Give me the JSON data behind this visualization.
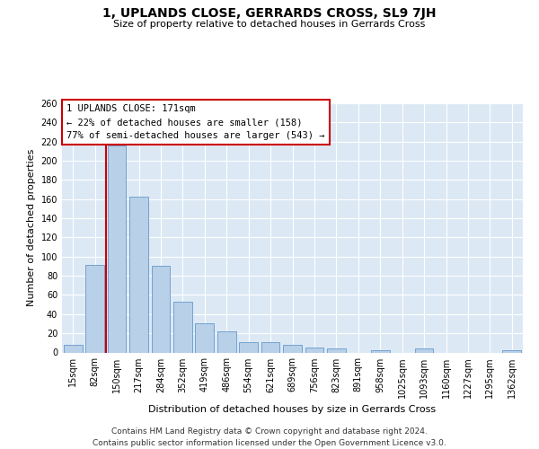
{
  "title": "1, UPLANDS CLOSE, GERRARDS CROSS, SL9 7JH",
  "subtitle": "Size of property relative to detached houses in Gerrards Cross",
  "xlabel": "Distribution of detached houses by size in Gerrards Cross",
  "ylabel": "Number of detached properties",
  "bar_labels": [
    "15sqm",
    "82sqm",
    "150sqm",
    "217sqm",
    "284sqm",
    "352sqm",
    "419sqm",
    "486sqm",
    "554sqm",
    "621sqm",
    "689sqm",
    "756sqm",
    "823sqm",
    "891sqm",
    "958sqm",
    "1025sqm",
    "1093sqm",
    "1160sqm",
    "1227sqm",
    "1295sqm",
    "1362sqm"
  ],
  "bar_values": [
    8,
    91,
    216,
    163,
    90,
    53,
    30,
    22,
    11,
    11,
    8,
    5,
    4,
    0,
    2,
    0,
    4,
    0,
    0,
    0,
    2
  ],
  "bar_color": "#b8d0e8",
  "bar_edge_color": "#6699cc",
  "background_color": "#dce9f5",
  "grid_color": "#ffffff",
  "vline_color": "#cc0000",
  "annotation_text": "1 UPLANDS CLOSE: 171sqm\n← 22% of detached houses are smaller (158)\n77% of semi-detached houses are larger (543) →",
  "annotation_box_color": "#ffffff",
  "annotation_box_edge_color": "#cc0000",
  "footer_line1": "Contains HM Land Registry data © Crown copyright and database right 2024.",
  "footer_line2": "Contains public sector information licensed under the Open Government Licence v3.0.",
  "ylim": [
    0,
    260
  ],
  "yticks": [
    0,
    20,
    40,
    60,
    80,
    100,
    120,
    140,
    160,
    180,
    200,
    220,
    240,
    260
  ],
  "title_fontsize": 10,
  "subtitle_fontsize": 8,
  "ylabel_fontsize": 8,
  "xlabel_fontsize": 8,
  "tick_fontsize": 7,
  "annotation_fontsize": 7.5
}
